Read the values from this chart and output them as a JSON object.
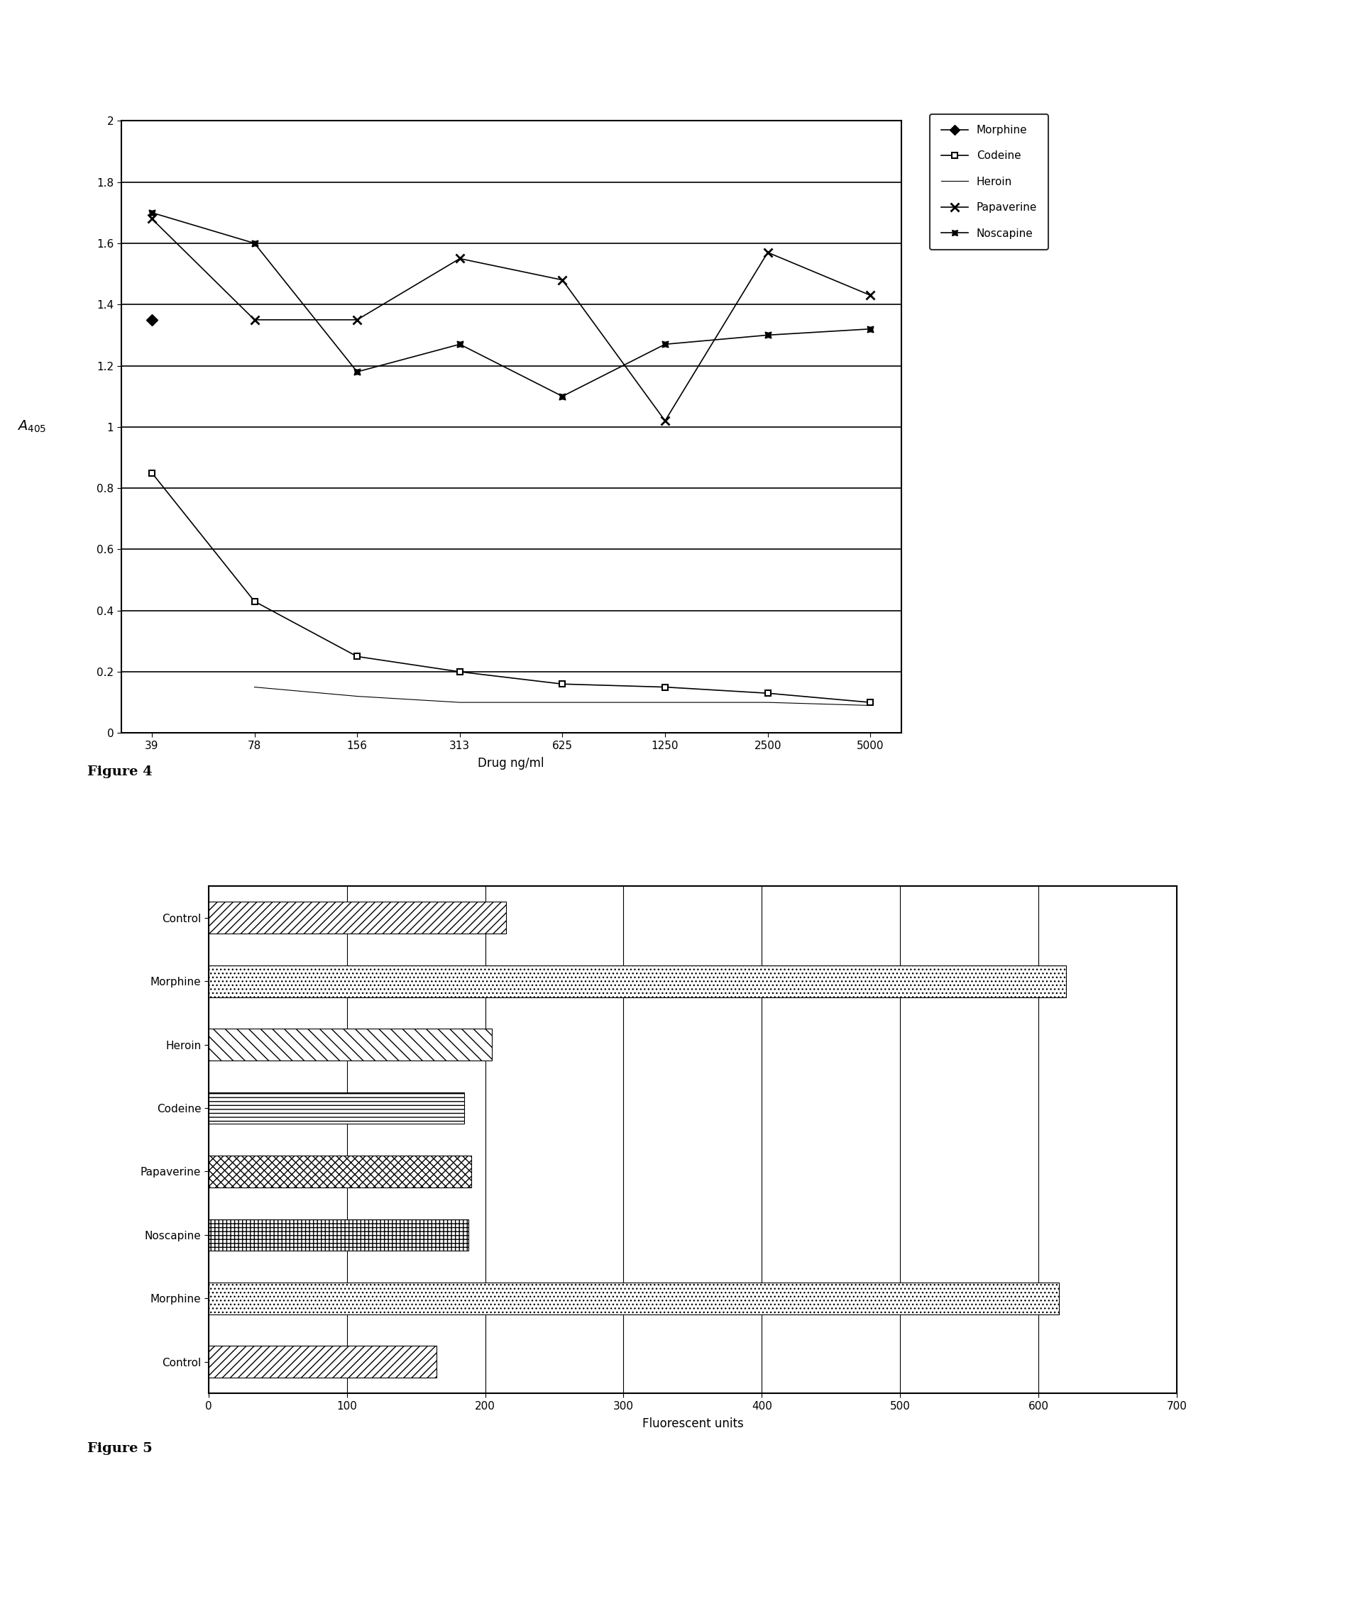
{
  "fig4": {
    "x_labels": [
      "39",
      "78",
      "156",
      "313",
      "625",
      "1250",
      "2500",
      "5000"
    ],
    "x_values": [
      39,
      78,
      156,
      313,
      625,
      1250,
      2500,
      5000
    ],
    "morphine": [
      1.35,
      null,
      null,
      null,
      null,
      null,
      null,
      null
    ],
    "codeine": [
      0.85,
      0.43,
      0.25,
      0.2,
      0.16,
      0.15,
      0.13,
      0.1
    ],
    "heroin_start_idx": 1,
    "heroin": [
      0.15,
      0.12,
      0.1,
      0.1,
      0.1,
      0.1,
      0.09
    ],
    "papaverine": [
      1.68,
      1.35,
      1.35,
      1.55,
      1.48,
      1.02,
      1.57,
      1.43
    ],
    "noscapine": [
      1.7,
      1.6,
      1.18,
      1.27,
      1.1,
      1.27,
      1.3,
      1.32
    ],
    "ylabel": "$A_{405}$",
    "xlabel": "Drug ng/ml",
    "ylim": [
      0,
      2
    ],
    "yticks": [
      0,
      0.2,
      0.4,
      0.6,
      0.8,
      1.0,
      1.2,
      1.4,
      1.6,
      1.8,
      2.0
    ],
    "ytick_labels": [
      "0",
      "0.2",
      "0.4",
      "0.6",
      "0.8",
      "1",
      "1.2",
      "1.4",
      "1.6",
      "1.8",
      "2"
    ],
    "legend_entries": [
      "Morphine",
      "Codeine",
      "Heroin",
      "Papaverine",
      "Noscapine"
    ],
    "figure_label": "Figure 4"
  },
  "fig5": {
    "categories": [
      "Control",
      "Morphine",
      "Heroin",
      "Codeine",
      "Papaverine",
      "Noscapine",
      "Morphine",
      "Control"
    ],
    "values": [
      215,
      620,
      205,
      185,
      190,
      188,
      615,
      165
    ],
    "xlabel": "Fluorescent units",
    "xlim": [
      0,
      700
    ],
    "xticks": [
      0,
      100,
      200,
      300,
      400,
      500,
      600,
      700
    ],
    "figure_label": "Figure 5"
  },
  "background_color": "#ffffff",
  "line_color": "#000000"
}
